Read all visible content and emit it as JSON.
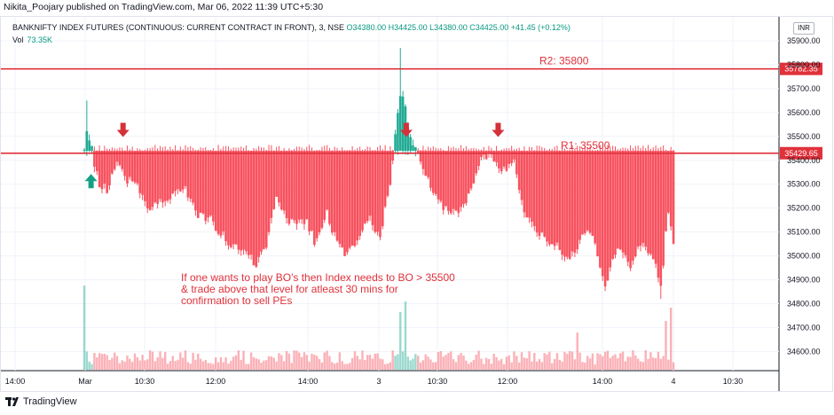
{
  "header": {
    "published": "Nikita_Poojary published on TradingView.com, Mar 06, 2022 11:39 UTC+5:30",
    "symbol_line": "BANKNIFTY INDEX FUTURES (CONTINUOUS: CURRENT CONTRACT IN FRONT), 3, NSE",
    "open": "O34380.00",
    "high": "H34425.00",
    "low": "L34380.00",
    "close": "C34425.00",
    "change": "+41.45 (+0.12%)",
    "vol_label": "Vol",
    "vol_value": "73.35K",
    "currency": "INR"
  },
  "footer": {
    "brand": "TradingView"
  },
  "chart_data": {
    "type": "candlestick",
    "ylim": [
      34520,
      36000
    ],
    "y_ticks": [
      35900,
      35800,
      35700,
      35600,
      35500,
      35400,
      35300,
      35200,
      35100,
      35000,
      34900,
      34800,
      34700,
      34600
    ],
    "y_tick_labels": [
      "35900.00",
      "35800.00",
      "35700.00",
      "35600.00",
      "35500.00",
      "35400.00",
      "35300.00",
      "35200.00",
      "35100.00",
      "35000.00",
      "34900.00",
      "34800.00",
      "34700.00",
      "34600.00"
    ],
    "x_tick_labels": [
      "14:00",
      "Mar",
      "10:30",
      "12:00",
      "14:00",
      "3",
      "10:30",
      "12:00",
      "14:00",
      "4",
      "10:30"
    ],
    "horizontal_levels": [
      {
        "label": "R2: 35800",
        "value": 35782.35,
        "price_label": "35782.35",
        "color": "#e0313a"
      },
      {
        "label": "R1: 35500",
        "value": 35429.65,
        "price_label": "35429.65",
        "color": "#e0313a"
      }
    ],
    "annotation": "If one wants to play BO's then Index needs to BO > 35500\n& trade above that level for atleast 30 mins for\nconfirmation to sell PEs",
    "arrows": [
      {
        "direction": "up",
        "color": "#14a085",
        "x_bar": 8,
        "y": 35350
      },
      {
        "direction": "down",
        "color": "#d4313b",
        "x_bar": 46,
        "y": 35490
      },
      {
        "direction": "down",
        "color": "#d4313b",
        "x_bar": 382,
        "y": 35490
      },
      {
        "direction": "down",
        "color": "#d4313b",
        "x_bar": 491,
        "y": 35490
      }
    ],
    "path_anchors": [
      [
        0,
        35440
      ],
      [
        4,
        35540
      ],
      [
        10,
        35420
      ],
      [
        18,
        35300
      ],
      [
        28,
        35280
      ],
      [
        40,
        35400
      ],
      [
        50,
        35320
      ],
      [
        62,
        35300
      ],
      [
        75,
        35210
      ],
      [
        90,
        35220
      ],
      [
        105,
        35260
      ],
      [
        120,
        35290
      ],
      [
        132,
        35180
      ],
      [
        150,
        35150
      ],
      [
        168,
        35070
      ],
      [
        185,
        35020
      ],
      [
        205,
        34970
      ],
      [
        215,
        35040
      ],
      [
        228,
        35230
      ],
      [
        245,
        35140
      ],
      [
        262,
        35150
      ],
      [
        275,
        35050
      ],
      [
        287,
        35190
      ],
      [
        298,
        35070
      ],
      [
        310,
        35010
      ],
      [
        322,
        35030
      ],
      [
        338,
        35160
      ],
      [
        350,
        35070
      ],
      [
        364,
        35330
      ],
      [
        376,
        35720
      ],
      [
        386,
        35500
      ],
      [
        396,
        35420
      ],
      [
        410,
        35310
      ],
      [
        425,
        35210
      ],
      [
        440,
        35180
      ],
      [
        455,
        35250
      ],
      [
        470,
        35400
      ],
      [
        482,
        35430
      ],
      [
        495,
        35360
      ],
      [
        510,
        35400
      ],
      [
        520,
        35200
      ],
      [
        535,
        35100
      ],
      [
        548,
        35070
      ],
      [
        562,
        35050
      ],
      [
        575,
        34980
      ],
      [
        590,
        35080
      ],
      [
        602,
        35100
      ],
      [
        618,
        34880
      ],
      [
        632,
        35040
      ],
      [
        648,
        34960
      ],
      [
        662,
        35070
      ],
      [
        674,
        35000
      ],
      [
        685,
        34880
      ],
      [
        692,
        35180
      ],
      [
        700,
        35050
      ]
    ],
    "bar_count": 700,
    "down_candle_color": "#f7525f",
    "up_candle_color": "#22ab94"
  }
}
